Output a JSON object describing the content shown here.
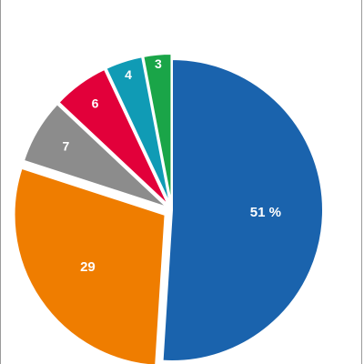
{
  "chart_data": {
    "type": "pie",
    "start": "12 o'clock",
    "direction": "clockwise",
    "slices": [
      {
        "value": 51,
        "label": "51 %",
        "color": "#1a63ad"
      },
      {
        "value": 29,
        "label": "29",
        "color": "#ef7d00"
      },
      {
        "value": 7,
        "label": "7",
        "color": "#8c8c8c"
      },
      {
        "value": 6,
        "label": "6",
        "color": "#e2003a"
      },
      {
        "value": 4,
        "label": "4",
        "color": "#109bb5"
      },
      {
        "value": 3,
        "label": "3",
        "color": "#1aa548"
      }
    ],
    "exploded_slices": [
      "3",
      "4",
      "6",
      "7",
      "29"
    ]
  }
}
